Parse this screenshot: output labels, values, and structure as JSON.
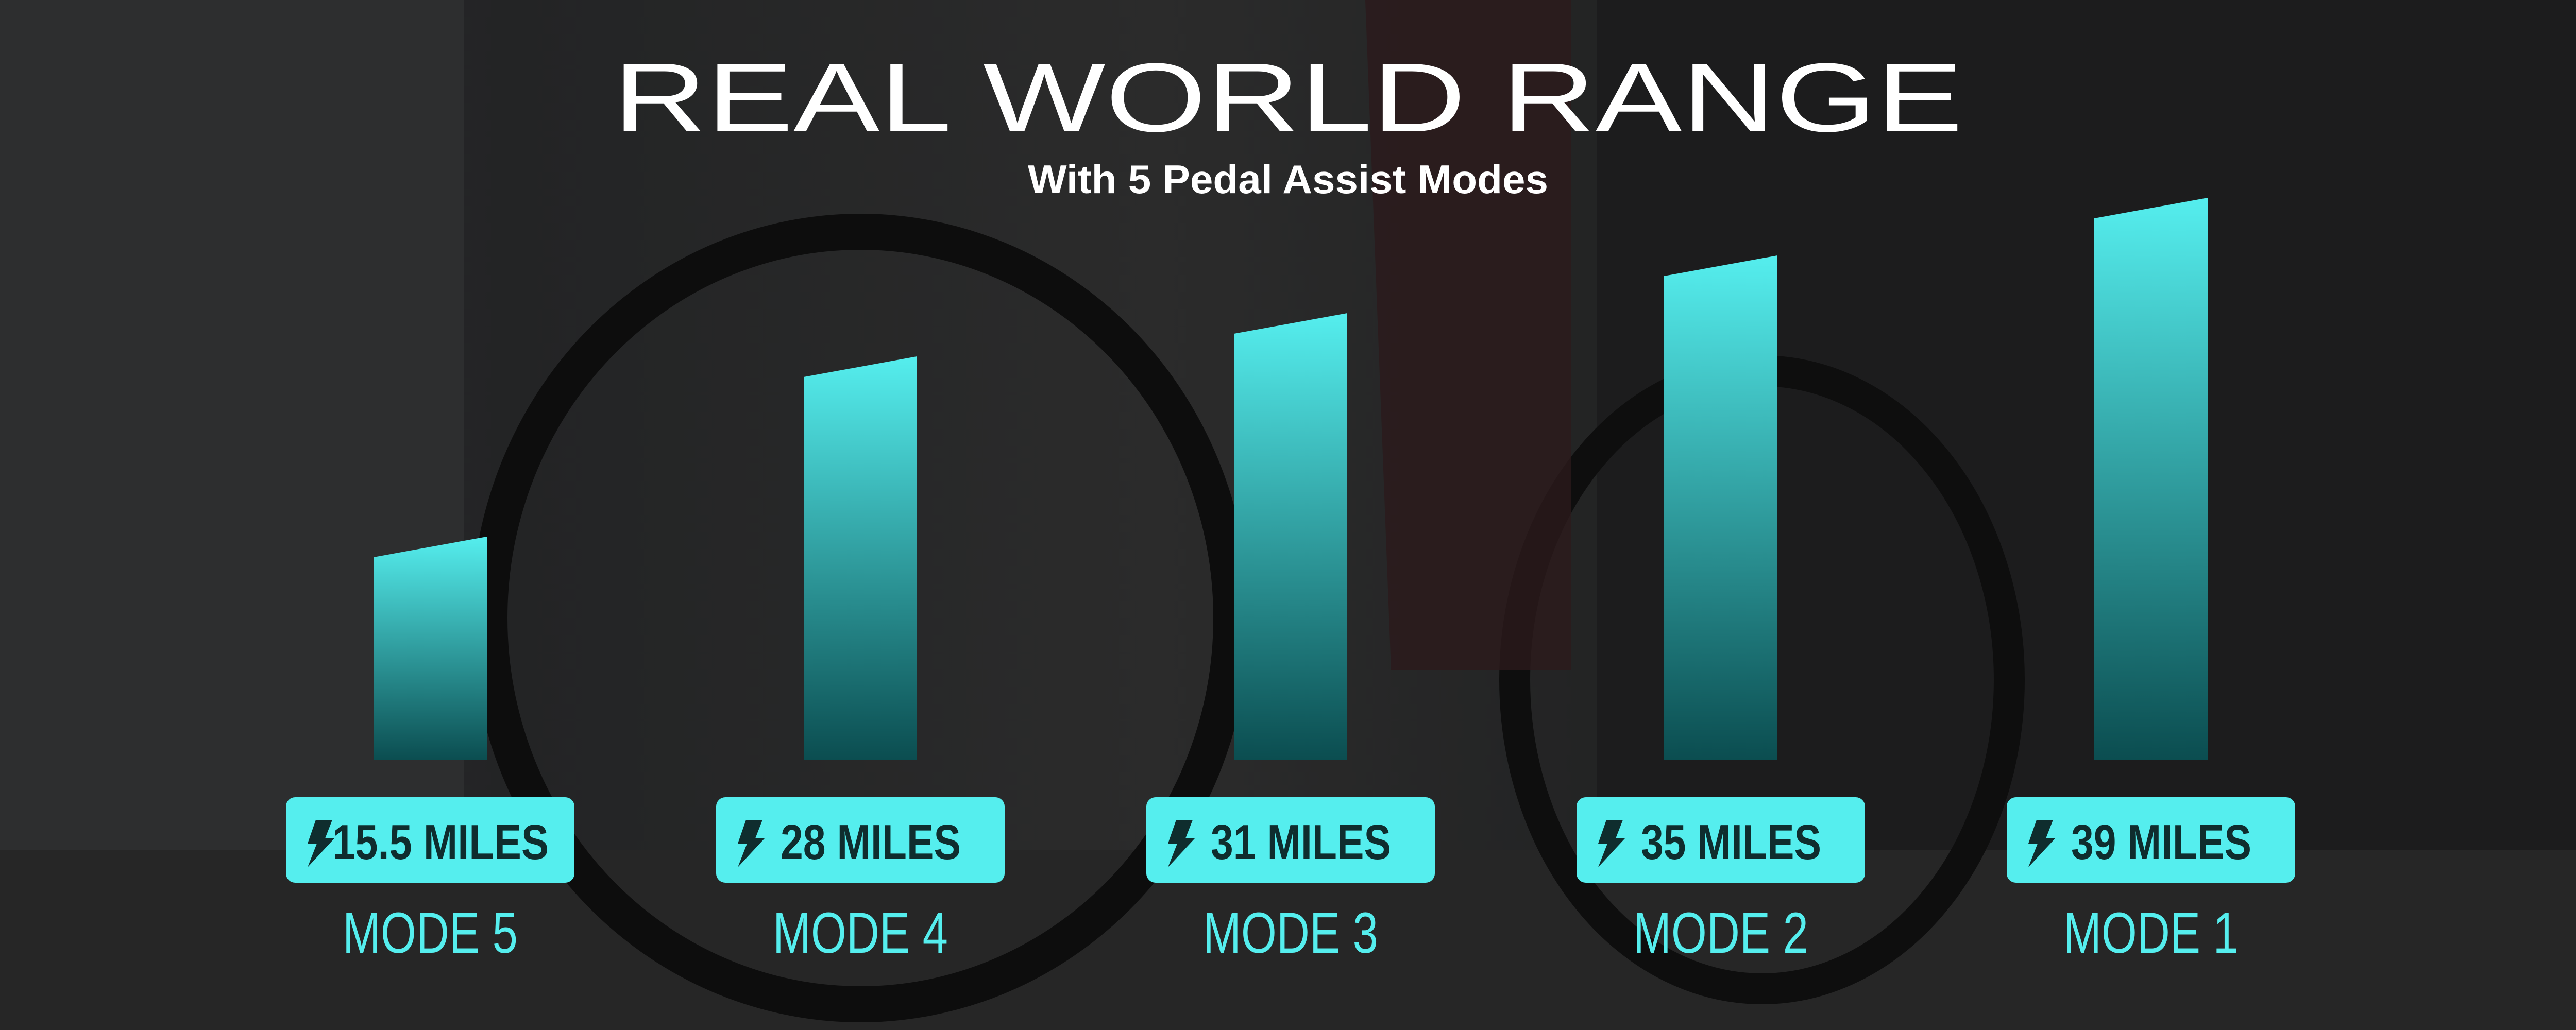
{
  "chart_data": {
    "type": "bar",
    "title": "REAL WORLD RANGE",
    "subtitle": "With 5 Pedal Assist Modes",
    "categories": [
      "MODE 5",
      "MODE 4",
      "MODE 3",
      "MODE 2",
      "MODE 1"
    ],
    "values": [
      15.5,
      28,
      31,
      35,
      39
    ],
    "value_labels": [
      "15.5 MILES",
      "28 MILES",
      "31 MILES",
      "35 MILES",
      "39 MILES"
    ],
    "unit": "MILES",
    "label_icon": "lightning-bolt-icon",
    "ylim": [
      0,
      39
    ],
    "grid": false,
    "axes_visible": false
  },
  "colors": {
    "bar_top": "#55eeee",
    "bar_bottom": "#0b4d50",
    "pill": "#55eeee",
    "pill_text": "#0f2d2e",
    "mode_label": "#55eeee",
    "title": "#ffffff"
  }
}
